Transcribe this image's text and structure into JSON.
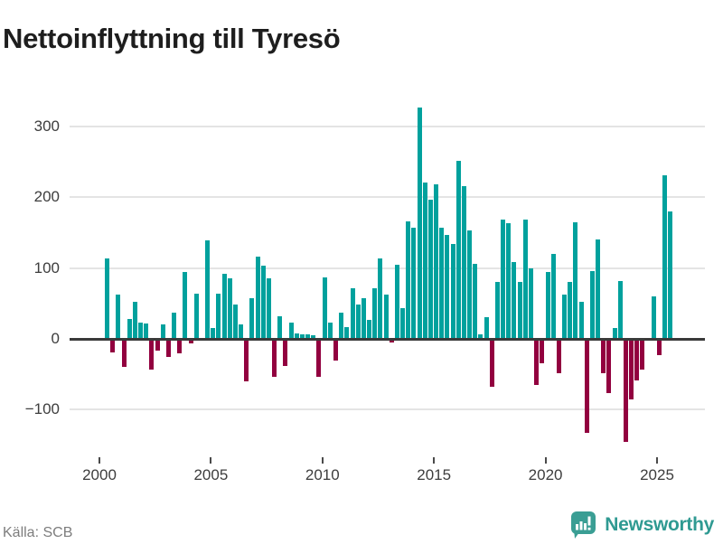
{
  "title": "Nettoinflyttning till Tyresö",
  "footer": {
    "source": "Källa: SCB",
    "brand": "Newsworthy"
  },
  "colors": {
    "positive": "#00a19d",
    "negative": "#92003f",
    "title": "#1e1e1e",
    "grid": "#e4e4e4",
    "zero_line": "#3a3a3a",
    "axis_text": "#3d3d3d",
    "brand_teal": "#2f9a92"
  },
  "chart_data": {
    "type": "bar",
    "title": "Nettoinflyttning till Tyresö",
    "xlabel": "",
    "ylabel": "",
    "grid": "horizontal",
    "legend": "none",
    "ylim": [
      -160,
      345
    ],
    "y_ticks": [
      {
        "label": "300",
        "value": 300
      },
      {
        "label": "200",
        "value": 200
      },
      {
        "label": "100",
        "value": 100
      },
      {
        "label": "0",
        "value": 0
      },
      {
        "label": "−100",
        "value": -100
      }
    ],
    "x_ticks": [
      {
        "label": "2000",
        "year": 2000
      },
      {
        "label": "2005",
        "year": 2005
      },
      {
        "label": "2010",
        "year": 2010
      },
      {
        "label": "2015",
        "year": 2015
      },
      {
        "label": "2020",
        "year": 2020
      },
      {
        "label": "2025",
        "year": 2025
      }
    ],
    "categories": [
      "2000Q2",
      "2000Q3",
      "2000Q4",
      "2001Q1",
      "2001Q2",
      "2001Q3",
      "2001Q4",
      "2002Q1",
      "2002Q2",
      "2002Q3",
      "2002Q4",
      "2003Q1",
      "2003Q2",
      "2003Q3",
      "2003Q4",
      "2004Q1",
      "2004Q2",
      "2004Q3",
      "2004Q4",
      "2005Q1",
      "2005Q2",
      "2005Q3",
      "2005Q4",
      "2006Q1",
      "2006Q2",
      "2006Q3",
      "2006Q4",
      "2007Q1",
      "2007Q2",
      "2007Q3",
      "2007Q4",
      "2008Q1",
      "2008Q2",
      "2008Q3",
      "2008Q4",
      "2009Q1",
      "2009Q2",
      "2009Q3",
      "2009Q4",
      "2010Q1",
      "2010Q2",
      "2010Q3",
      "2010Q4",
      "2011Q1",
      "2011Q2",
      "2011Q3",
      "2011Q4",
      "2012Q1",
      "2012Q2",
      "2012Q3",
      "2012Q4",
      "2013Q1",
      "2013Q2",
      "2013Q3",
      "2013Q4",
      "2014Q1",
      "2014Q2",
      "2014Q3",
      "2014Q4",
      "2015Q1",
      "2015Q2",
      "2015Q3",
      "2015Q4",
      "2016Q1",
      "2016Q2",
      "2016Q3",
      "2016Q4",
      "2017Q1",
      "2017Q2",
      "2017Q3",
      "2017Q4",
      "2018Q1",
      "2018Q2",
      "2018Q3",
      "2018Q4",
      "2019Q1",
      "2019Q2",
      "2019Q3",
      "2019Q4",
      "2020Q1",
      "2020Q2",
      "2020Q3",
      "2020Q4",
      "2021Q1",
      "2021Q2",
      "2021Q3",
      "2021Q4",
      "2022Q1",
      "2022Q2",
      "2022Q3",
      "2022Q4",
      "2023Q1",
      "2023Q2",
      "2023Q3",
      "2023Q4",
      "2024Q1",
      "2024Q2",
      "2024Q3",
      "2024Q4",
      "2025Q1",
      "2025Q2",
      "2025Q3"
    ],
    "values": [
      113,
      -19,
      63,
      -39,
      28,
      52,
      23,
      22,
      -43,
      -17,
      20,
      -26,
      37,
      -21,
      94,
      -6,
      64,
      0,
      139,
      15,
      64,
      92,
      86,
      48,
      20,
      -60,
      57,
      116,
      103,
      86,
      -54,
      32,
      -38,
      23,
      8,
      7,
      6,
      5,
      -53,
      87,
      23,
      -31,
      37,
      17,
      71,
      49,
      58,
      27,
      72,
      114,
      63,
      -5,
      104,
      43,
      166,
      157,
      327,
      221,
      196,
      218,
      157,
      147,
      134,
      251,
      216,
      153,
      106,
      6,
      30,
      -67,
      80,
      169,
      163,
      109,
      80,
      169,
      99,
      -65,
      -34,
      94,
      120,
      -48,
      62,
      80,
      165,
      52,
      -133,
      96,
      140,
      -49,
      -77,
      15,
      81,
      -145,
      -85,
      -59,
      -44,
      0,
      60,
      -23,
      231,
      180
    ],
    "series_colors": {
      "positive": "#00a19d",
      "negative": "#92003f"
    }
  }
}
